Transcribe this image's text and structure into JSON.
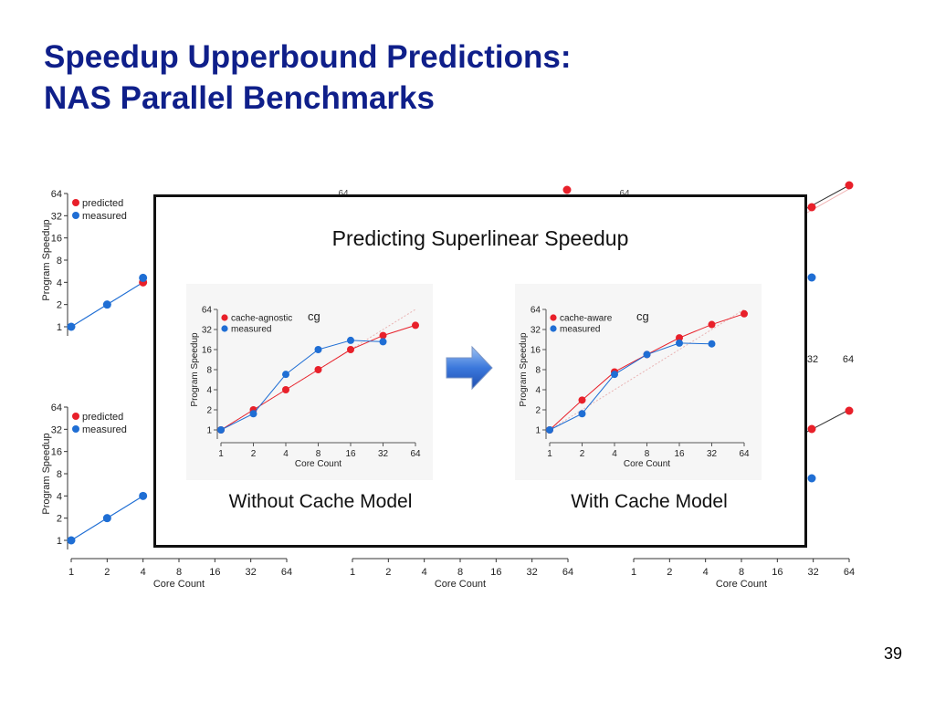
{
  "slide": {
    "title_line1": "Speedup Upperbound Predictions:",
    "title_line2": "NAS Parallel Benchmarks",
    "page_number": "39",
    "title_color": "#0f1f8a"
  },
  "overlay": {
    "title": "Predicting Superlinear Speedup",
    "left_caption": "Without Cache Model",
    "right_caption": "With Cache Model",
    "arrow_icon": "right-arrow-icon"
  },
  "chart_data": [
    {
      "type": "line",
      "name": "cg",
      "x": [
        1,
        2,
        4,
        8,
        16,
        32,
        64
      ],
      "series": [
        {
          "name": "cache-agnostic",
          "color": "#e8202a",
          "values": [
            1,
            2,
            4,
            8,
            16,
            26,
            37
          ]
        },
        {
          "name": "measured",
          "color": "#1f6ed4",
          "values": [
            1,
            1.75,
            6.8,
            16,
            22,
            21,
            null
          ]
        }
      ],
      "xlabel": "Core Count",
      "ylabel": "Program Speedup",
      "xticks": [
        "1",
        "2",
        "4",
        "8",
        "16",
        "32",
        "64"
      ],
      "yticks": [
        "1",
        "2",
        "4",
        "8",
        "16",
        "32",
        "64"
      ],
      "scale": "log2",
      "legend": "top-left"
    },
    {
      "type": "line",
      "name": "cg",
      "x": [
        1,
        2,
        4,
        8,
        16,
        32,
        64
      ],
      "series": [
        {
          "name": "cache-aware",
          "color": "#e8202a",
          "values": [
            1,
            2.8,
            7.4,
            13.5,
            24,
            38,
            55
          ]
        },
        {
          "name": "measured",
          "color": "#1f6ed4",
          "values": [
            1,
            1.75,
            6.8,
            13.5,
            20,
            19.5,
            null
          ]
        }
      ],
      "xlabel": "Core Count",
      "ylabel": "Program Speedup",
      "xticks": [
        "1",
        "2",
        "4",
        "8",
        "16",
        "32",
        "64"
      ],
      "yticks": [
        "1",
        "2",
        "4",
        "8",
        "16",
        "32",
        "64"
      ],
      "scale": "log2",
      "legend": "top-left"
    }
  ],
  "background_charts": {
    "legend_predicted": "predicted",
    "legend_measured": "measured",
    "ylabel": "Program Speedup",
    "xlabel": "Core Count",
    "ticks": [
      "1",
      "2",
      "4",
      "8",
      "16",
      "32",
      "64"
    ],
    "partial_tick": "64"
  }
}
